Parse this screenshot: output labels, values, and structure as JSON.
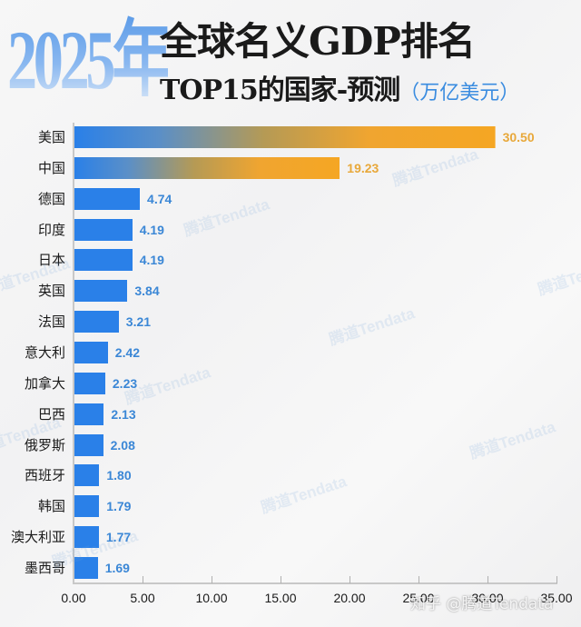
{
  "header": {
    "year": "2025年",
    "title": "全球名义GDP排名",
    "subtitle": "TOP15的国家-预测",
    "unit": "（万亿美元）"
  },
  "watermark": "腾道Tendata",
  "credit": "知乎 @腾道Tendata",
  "colors": {
    "bar_blue": "#2a80e8",
    "bar_gold": "#f5a623",
    "value_blue": "#3b87d6",
    "value_gold": "#e8a83a"
  },
  "chart_data": {
    "type": "bar",
    "orientation": "horizontal",
    "title": "2025年全球名义GDP排名TOP15的国家-预测（万亿美元）",
    "xlabel": "",
    "ylabel": "",
    "xlim": [
      0,
      35
    ],
    "xticks": [
      "0.00",
      "5.00",
      "10.00",
      "15.00",
      "20.00",
      "25.00",
      "30.00",
      "35.00"
    ],
    "grid": false,
    "legend": "none",
    "categories": [
      "美国",
      "中国",
      "德国",
      "印度",
      "日本",
      "英国",
      "法国",
      "意大利",
      "加拿大",
      "巴西",
      "俄罗斯",
      "西班牙",
      "韩国",
      "澳大利亚",
      "墨西哥"
    ],
    "values": [
      30.5,
      19.23,
      4.74,
      4.19,
      4.19,
      3.84,
      3.21,
      2.42,
      2.23,
      2.13,
      2.08,
      1.8,
      1.79,
      1.77,
      1.69
    ],
    "value_labels": [
      "30.50",
      "19.23",
      "4.74",
      "4.19",
      "4.19",
      "3.84",
      "3.21",
      "2.42",
      "2.23",
      "2.13",
      "2.08",
      "1.80",
      "1.79",
      "1.77",
      "1.69"
    ],
    "highlighted": [
      "美国",
      "中国"
    ]
  }
}
